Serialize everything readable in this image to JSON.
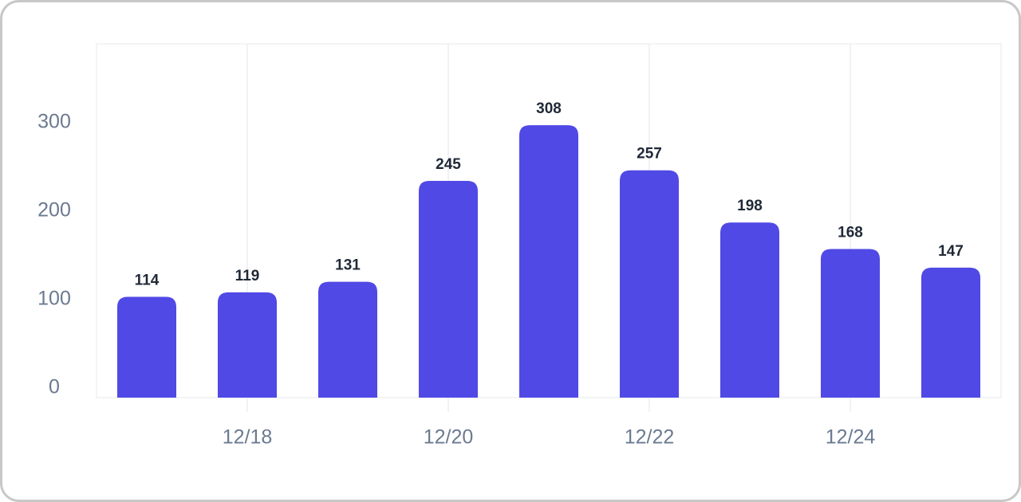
{
  "chart_data": {
    "type": "bar",
    "categories": [
      null,
      "12/18",
      null,
      "12/20",
      null,
      "12/22",
      null,
      "12/24",
      null
    ],
    "values": [
      114,
      119,
      131,
      245,
      308,
      257,
      198,
      168,
      147
    ],
    "color": "#5049e5",
    "ylim": [
      0,
      400
    ],
    "yticks": [
      0,
      100,
      200,
      300
    ]
  }
}
